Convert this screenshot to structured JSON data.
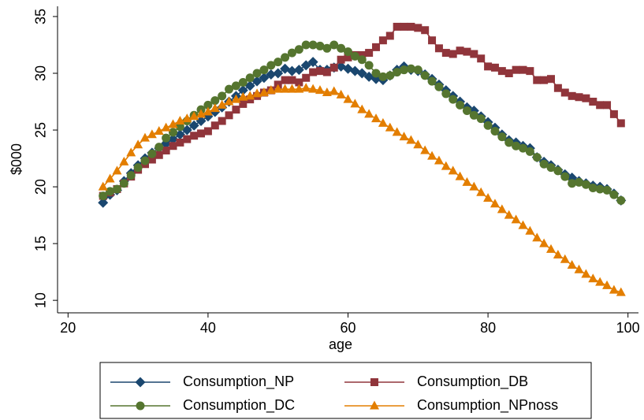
{
  "chart_data": {
    "type": "line",
    "x_label": "age",
    "y_label": "$000",
    "x": [
      25,
      26,
      27,
      28,
      29,
      30,
      31,
      32,
      33,
      34,
      35,
      36,
      37,
      38,
      39,
      40,
      41,
      42,
      43,
      44,
      45,
      46,
      47,
      48,
      49,
      50,
      51,
      52,
      53,
      54,
      55,
      56,
      57,
      58,
      59,
      60,
      61,
      62,
      63,
      64,
      65,
      66,
      67,
      68,
      69,
      70,
      71,
      72,
      73,
      74,
      75,
      76,
      77,
      78,
      79,
      80,
      81,
      82,
      83,
      84,
      85,
      86,
      87,
      88,
      89,
      90,
      91,
      92,
      93,
      94,
      95,
      96,
      97,
      98,
      99
    ],
    "xlim": [
      18.5,
      101.5
    ],
    "xticks": [
      20,
      40,
      60,
      80,
      100
    ],
    "ylim": [
      8.9,
      35.9
    ],
    "yticks": [
      10,
      15,
      20,
      25,
      30,
      35
    ],
    "grid": false,
    "series": [
      {
        "name": "Consumption_NP",
        "color": "#1a476f",
        "marker": "diamond",
        "values": [
          18.6,
          19.3,
          19.7,
          20.5,
          21.2,
          21.9,
          22.5,
          23.0,
          23.4,
          23.8,
          24.2,
          24.6,
          25.0,
          25.4,
          25.8,
          26.2,
          26.6,
          27.0,
          27.5,
          28.0,
          28.5,
          28.9,
          29.3,
          29.6,
          29.9,
          30.0,
          30.4,
          30.2,
          30.3,
          30.7,
          31.0,
          30.3,
          30.3,
          30.5,
          30.6,
          30.4,
          30.2,
          30.0,
          29.7,
          29.5,
          29.4,
          29.8,
          30.3,
          30.6,
          30.3,
          30.2,
          29.9,
          29.5,
          29.0,
          28.5,
          28.0,
          27.5,
          27.0,
          26.7,
          26.2,
          25.7,
          25.2,
          24.6,
          24.1,
          23.9,
          23.6,
          23.4,
          22.6,
          22.2,
          21.9,
          21.5,
          21.1,
          20.8,
          20.5,
          20.3,
          20.1,
          20.0,
          19.8,
          19.4,
          18.8
        ]
      },
      {
        "name": "Consumption_DB",
        "color": "#90353b",
        "marker": "square",
        "values": [
          19.2,
          19.5,
          19.8,
          20.3,
          20.9,
          21.5,
          22.0,
          22.4,
          22.8,
          23.2,
          23.6,
          23.9,
          24.2,
          24.5,
          24.7,
          24.9,
          25.4,
          25.8,
          26.3,
          26.8,
          27.3,
          27.7,
          28.0,
          28.3,
          28.5,
          29.0,
          29.4,
          29.4,
          29.2,
          29.6,
          30.1,
          30.2,
          30.1,
          30.5,
          31.2,
          31.4,
          31.6,
          31.6,
          31.8,
          32.3,
          32.9,
          33.3,
          34.1,
          34.1,
          34.1,
          34.0,
          33.8,
          32.9,
          32.2,
          31.8,
          31.7,
          32.0,
          31.9,
          31.7,
          31.3,
          30.6,
          30.5,
          30.2,
          30.0,
          30.3,
          30.3,
          30.2,
          29.4,
          29.4,
          29.5,
          28.7,
          28.3,
          28.0,
          27.9,
          27.8,
          27.5,
          27.2,
          27.2,
          26.4,
          25.6
        ]
      },
      {
        "name": "Consumption_DC",
        "color": "#55752f",
        "marker": "circle",
        "values": [
          19.2,
          19.6,
          19.8,
          20.3,
          21.0,
          21.7,
          22.3,
          22.9,
          23.5,
          24.3,
          24.8,
          25.3,
          25.8,
          26.3,
          26.8,
          27.2,
          27.6,
          28.0,
          28.6,
          28.9,
          29.2,
          29.6,
          30.0,
          30.3,
          30.7,
          31.0,
          31.4,
          31.8,
          32.1,
          32.5,
          32.5,
          32.4,
          32.2,
          32.5,
          32.2,
          31.9,
          31.5,
          31.2,
          30.7,
          30.0,
          29.7,
          29.8,
          30.1,
          30.3,
          30.4,
          30.3,
          29.8,
          29.3,
          28.8,
          28.2,
          27.7,
          27.2,
          26.7,
          26.3,
          26.0,
          25.4,
          24.9,
          24.4,
          23.9,
          23.6,
          23.4,
          23.1,
          22.6,
          22.0,
          21.7,
          21.4,
          20.9,
          20.3,
          20.4,
          20.2,
          19.9,
          19.8,
          19.7,
          19.3,
          18.8
        ]
      },
      {
        "name": "Consumption_NPnoss",
        "color": "#e37e00",
        "marker": "triangle",
        "values": [
          20.0,
          20.7,
          21.4,
          22.2,
          23.0,
          23.7,
          24.3,
          24.6,
          24.9,
          25.2,
          25.5,
          25.8,
          26.0,
          26.2,
          26.4,
          26.6,
          26.9,
          27.2,
          27.5,
          27.7,
          27.9,
          28.0,
          28.2,
          28.3,
          28.5,
          28.6,
          28.6,
          28.6,
          28.6,
          28.7,
          28.6,
          28.5,
          28.3,
          28.4,
          28.1,
          27.7,
          27.3,
          26.8,
          26.4,
          26.0,
          25.6,
          25.2,
          24.8,
          24.4,
          24.1,
          23.7,
          23.2,
          22.7,
          22.3,
          21.8,
          21.4,
          20.9,
          20.4,
          20.0,
          19.5,
          19.0,
          18.5,
          18.0,
          17.5,
          17.1,
          16.6,
          16.1,
          15.5,
          15.0,
          14.5,
          14.0,
          13.6,
          13.1,
          12.7,
          12.3,
          11.9,
          11.6,
          11.3,
          10.9,
          10.7
        ]
      }
    ]
  }
}
